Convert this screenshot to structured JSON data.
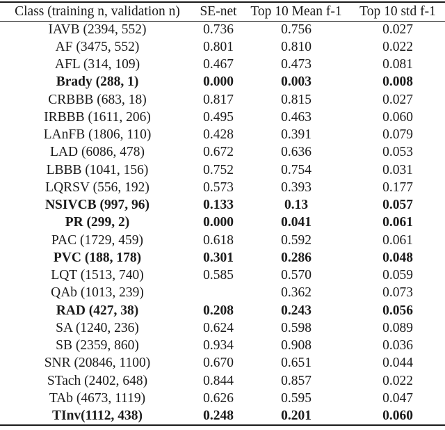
{
  "table": {
    "headers": [
      "Class (training n, validation n)",
      "SE-net",
      "Top 10 Mean f-1",
      "Top 10 std f-1"
    ],
    "rows": [
      {
        "label": "IAVB (2394, 552)",
        "se_net": "0.736",
        "mean_f1": "0.756",
        "std_f1": "0.027",
        "bold": false
      },
      {
        "label": "AF (3475, 552)",
        "se_net": "0.801",
        "mean_f1": "0.810",
        "std_f1": "0.022",
        "bold": false
      },
      {
        "label": "AFL (314, 109)",
        "se_net": "0.467",
        "mean_f1": "0.473",
        "std_f1": "0.081",
        "bold": false
      },
      {
        "label": "Brady (288, 1)",
        "se_net": "0.000",
        "mean_f1": "0.003",
        "std_f1": "0.008",
        "bold": true
      },
      {
        "label": "CRBBB (683, 18)",
        "se_net": "0.817",
        "mean_f1": "0.815",
        "std_f1": "0.027",
        "bold": false
      },
      {
        "label": "IRBBB (1611, 206)",
        "se_net": "0.495",
        "mean_f1": "0.463",
        "std_f1": "0.060",
        "bold": false
      },
      {
        "label": "LAnFB (1806, 110)",
        "se_net": "0.428",
        "mean_f1": "0.391",
        "std_f1": "0.079",
        "bold": false
      },
      {
        "label": "LAD (6086, 478)",
        "se_net": "0.672",
        "mean_f1": "0.636",
        "std_f1": "0.053",
        "bold": false
      },
      {
        "label": "LBBB (1041, 156)",
        "se_net": "0.752",
        "mean_f1": "0.754",
        "std_f1": "0.031",
        "bold": false
      },
      {
        "label": "LQRSV (556, 192)",
        "se_net": "0.573",
        "mean_f1": "0.393",
        "std_f1": "0.177",
        "bold": false
      },
      {
        "label": "NSIVCB (997, 96)",
        "se_net": "0.133",
        "mean_f1": "0.13",
        "std_f1": "0.057",
        "bold": true
      },
      {
        "label": "PR (299, 2)",
        "se_net": "0.000",
        "mean_f1": "0.041",
        "std_f1": "0.061",
        "bold": true
      },
      {
        "label": "PAC (1729, 459)",
        "se_net": "0.618",
        "mean_f1": "0.592",
        "std_f1": "0.061",
        "bold": false
      },
      {
        "label": "PVC (188, 178)",
        "se_net": "0.301",
        "mean_f1": "0.286",
        "std_f1": "0.048",
        "bold": true
      },
      {
        "label": "LQT (1513, 740)",
        "se_net": "0.585",
        "mean_f1": "0.570",
        "std_f1": "0.059",
        "bold": false
      },
      {
        "label": "QAb (1013, 239)",
        "se_net": "",
        "mean_f1": "0.362",
        "std_f1": "0.073",
        "bold": false
      },
      {
        "label": "RAD (427, 38)",
        "se_net": "0.208",
        "mean_f1": "0.243",
        "std_f1": "0.056",
        "bold": true
      },
      {
        "label": "SA (1240, 236)",
        "se_net": "0.624",
        "mean_f1": "0.598",
        "std_f1": "0.089",
        "bold": false
      },
      {
        "label": "SB (2359, 860)",
        "se_net": "0.934",
        "mean_f1": "0.908",
        "std_f1": "0.036",
        "bold": false
      },
      {
        "label": "SNR (20846, 1100)",
        "se_net": "0.670",
        "mean_f1": "0.651",
        "std_f1": "0.044",
        "bold": false
      },
      {
        "label": "STach (2402, 648)",
        "se_net": "0.844",
        "mean_f1": "0.857",
        "std_f1": "0.022",
        "bold": false
      },
      {
        "label": "TAb (4673, 1119)",
        "se_net": "0.626",
        "mean_f1": "0.595",
        "std_f1": "0.047",
        "bold": false
      },
      {
        "label": "TInv(1112, 438)",
        "se_net": "0.248",
        "mean_f1": "0.201",
        "std_f1": "0.060",
        "bold": true
      }
    ]
  },
  "colors": {
    "text": "#1b1b1b",
    "rule": "#1b1b1b",
    "background": "#ffffff"
  }
}
